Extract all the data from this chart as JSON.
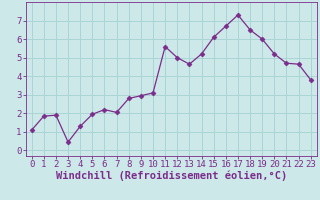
{
  "x": [
    0,
    1,
    2,
    3,
    4,
    5,
    6,
    7,
    8,
    9,
    10,
    11,
    12,
    13,
    14,
    15,
    16,
    17,
    18,
    19,
    20,
    21,
    22,
    23
  ],
  "y": [
    1.1,
    1.85,
    1.9,
    0.45,
    1.3,
    1.95,
    2.2,
    2.05,
    2.8,
    2.95,
    3.1,
    5.6,
    5.0,
    4.65,
    5.2,
    6.1,
    6.7,
    7.3,
    6.5,
    6.0,
    5.2,
    4.7,
    4.65,
    3.8
  ],
  "line_color": "#7b2d8b",
  "marker": "D",
  "marker_size": 2.5,
  "bg_color": "#cce8e8",
  "grid_color": "#aad4d4",
  "xlabel": "Windchill (Refroidissement éolien,°C)",
  "ylim": [
    -0.3,
    8.0
  ],
  "xlim": [
    -0.5,
    23.5
  ],
  "yticks": [
    0,
    1,
    2,
    3,
    4,
    5,
    6,
    7
  ],
  "xticks": [
    0,
    1,
    2,
    3,
    4,
    5,
    6,
    7,
    8,
    9,
    10,
    11,
    12,
    13,
    14,
    15,
    16,
    17,
    18,
    19,
    20,
    21,
    22,
    23
  ],
  "tick_fontsize": 6.5,
  "xlabel_fontsize": 7.5
}
